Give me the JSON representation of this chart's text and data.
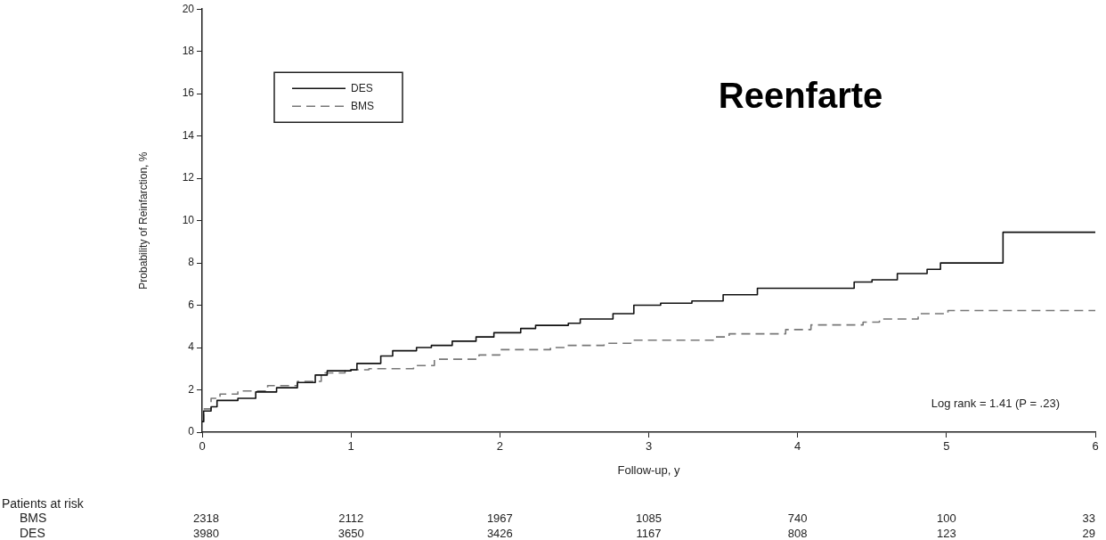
{
  "chart_data": {
    "type": "step",
    "title": "Reenfarte",
    "xlabel": "Follow-up, y",
    "ylabel": "Probability of Reinfarction, %",
    "xlim": [
      0,
      6
    ],
    "xticks": [
      0,
      1,
      2,
      3,
      4,
      5,
      6
    ],
    "ylim": [
      0,
      20
    ],
    "yticks": [
      0,
      2,
      4,
      6,
      8,
      10,
      12,
      14,
      16,
      18,
      20
    ],
    "legend": "top left",
    "grid": false,
    "series": [
      {
        "name": "DES",
        "color": "#111111",
        "line_style": "solid",
        "x": [
          0,
          0.01,
          0.06,
          0.1,
          0.24,
          0.36,
          0.5,
          0.64,
          0.76,
          0.84,
          1.0,
          1.04,
          1.2,
          1.28,
          1.44,
          1.54,
          1.68,
          1.84,
          1.96,
          2.14,
          2.24,
          2.46,
          2.54,
          2.76,
          2.9,
          3.08,
          3.29,
          3.5,
          3.73,
          4.38,
          4.5,
          4.67,
          4.87,
          4.96,
          5.38,
          6
        ],
        "values": [
          0.5,
          1.0,
          1.2,
          1.5,
          1.6,
          1.9,
          2.1,
          2.35,
          2.7,
          2.9,
          2.95,
          3.25,
          3.6,
          3.85,
          4.0,
          4.1,
          4.3,
          4.5,
          4.7,
          4.9,
          5.05,
          5.15,
          5.35,
          5.6,
          6.0,
          6.1,
          6.2,
          6.5,
          6.8,
          7.1,
          7.2,
          7.5,
          7.7,
          8.0,
          9.45,
          9.45
        ]
      },
      {
        "name": "BMS",
        "color": "#777777",
        "line_style": "dashed",
        "x": [
          0,
          0.01,
          0.06,
          0.12,
          0.24,
          0.44,
          0.64,
          0.8,
          0.96,
          1.12,
          1.42,
          1.56,
          1.86,
          2.0,
          2.34,
          2.44,
          2.7,
          2.88,
          3.44,
          3.54,
          3.92,
          4.09,
          4.44,
          4.55,
          4.81,
          5.01,
          6
        ],
        "values": [
          0.5,
          1.1,
          1.6,
          1.8,
          1.95,
          2.2,
          2.4,
          2.8,
          2.95,
          3.0,
          3.15,
          3.45,
          3.65,
          3.9,
          4.0,
          4.1,
          4.2,
          4.35,
          4.5,
          4.65,
          4.85,
          5.07,
          5.2,
          5.35,
          5.6,
          5.75,
          5.75
        ]
      }
    ],
    "annotations": [
      "Log rank = 1.41 (P = .23)",
      "Patients at risk",
      "BMS",
      "2318",
      "2112",
      "1967",
      "1085",
      "740",
      "100",
      "33",
      "DES",
      "3980",
      "3650",
      "3426",
      "1167",
      "808",
      "123",
      "29"
    ]
  }
}
